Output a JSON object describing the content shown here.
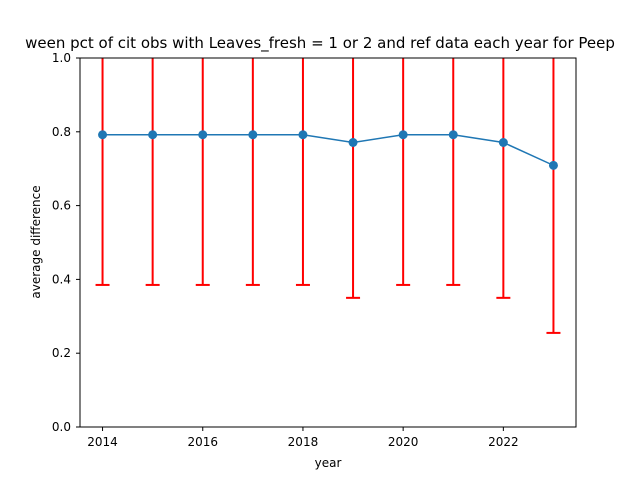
{
  "chart_data": {
    "type": "line",
    "title": "ween pct of cit obs with Leaves_fresh = 1 or 2 and ref data each year for Peep",
    "xlabel": "year",
    "ylabel": "average difference",
    "xlim": [
      2013.55,
      2023.45
    ],
    "ylim": [
      0.0,
      1.0
    ],
    "x_ticks": [
      2014,
      2016,
      2018,
      2020,
      2022
    ],
    "y_ticks": [
      "0.0",
      "0.2",
      "0.4",
      "0.6",
      "0.8",
      "1.0"
    ],
    "grid": false,
    "series": [
      {
        "color": "#1f77b4",
        "x": [
          2014,
          2015,
          2016,
          2017,
          2018,
          2019,
          2020,
          2021,
          2022,
          2023
        ],
        "y": [
          0.792,
          0.792,
          0.792,
          0.792,
          0.792,
          0.771,
          0.792,
          0.792,
          0.771,
          0.709
        ]
      }
    ],
    "error_bars": {
      "color": "#ff0000",
      "lower": [
        0.385,
        0.385,
        0.385,
        0.385,
        0.385,
        0.35,
        0.385,
        0.385,
        0.35,
        0.255
      ],
      "upper": [
        1.2,
        1.2,
        1.2,
        1.2,
        1.2,
        1.19,
        1.2,
        1.2,
        1.19,
        1.16
      ]
    }
  }
}
